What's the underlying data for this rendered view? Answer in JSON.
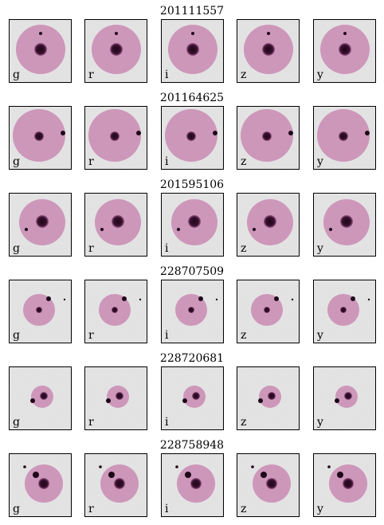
{
  "rows": [
    {
      "title": "201111557",
      "panels": [
        "g",
        "r",
        "i",
        "z",
        "y"
      ]
    },
    {
      "title": "201164625",
      "panels": [
        "g",
        "r",
        "i",
        "z",
        "y"
      ]
    },
    {
      "title": "201595106",
      "panels": [
        "g",
        "r",
        "i",
        "z",
        "y"
      ]
    },
    {
      "title": "228707509",
      "panels": [
        "g",
        "r",
        "i",
        "z",
        "y"
      ]
    },
    {
      "title": "228720681",
      "panels": [
        "g",
        "r",
        "i",
        "z",
        "y"
      ]
    },
    {
      "title": "228758948",
      "panels": [
        "g",
        "r",
        "i",
        "z",
        "y"
      ]
    }
  ]
}
